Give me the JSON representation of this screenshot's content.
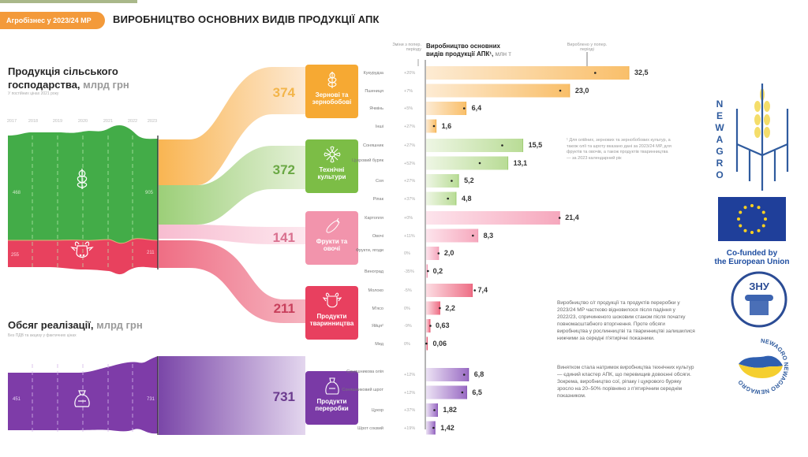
{
  "header": {
    "badge": "Агробізнес у 2023/24 МР",
    "title": "ВИРОБНИЦТВО ОСНОВНИХ ВИДІВ ПРОДУКЦІЇ АПК"
  },
  "left": {
    "production_title_1": "Продукція сільського",
    "production_title_2": "господарства,",
    "production_unit": "млрд грн",
    "production_sub": "У постійних цінах 2021 року",
    "years": [
      "2017",
      "2018",
      "2019",
      "2020",
      "2021",
      "2022",
      "2023"
    ],
    "crop_start": "468",
    "crop_end": "905",
    "livestock_start": "255",
    "livestock_end": "211",
    "sales_title": "Обсяг реалізації,",
    "sales_unit": "млрд грн",
    "sales_sub": "Без ПДВ та акцизу у фактичних цінах",
    "sales_start": "451",
    "sales_end": "731"
  },
  "categories": [
    {
      "num": "374",
      "label_1": "Зернові та",
      "label_2": "зернобобові",
      "icon": "wheat-icon",
      "color": "#f6a933"
    },
    {
      "num": "372",
      "label_1": "Технічні",
      "label_2": "культури",
      "icon": "flower-icon",
      "color": "#7cbd46"
    },
    {
      "num": "141",
      "label_1": "Фрукти та",
      "label_2": "овочі",
      "icon": "eggplant-icon",
      "color": "#f294ac"
    },
    {
      "num": "211",
      "label_1": "Продукти",
      "label_2": "тваринництва",
      "icon": "cow-icon",
      "color": "#e8405f"
    },
    {
      "num": "731",
      "label_1": "Продукти",
      "label_2": "переробки",
      "icon": "sack-icon",
      "color": "#7a3aa6"
    }
  ],
  "chart_head": {
    "title_1": "Виробництво основних",
    "title_2": "видів продукції АПК¹,",
    "unit": "млн т",
    "change_head": "Зміни з попер. періоду",
    "prev_head": "Вироблено у попер. періоді"
  },
  "note": "¹ Для олійних, зернових та зернобобових культур, а також олії та шроту вказано дані за 2023/24 МР, для фруктів та овочів, а також продуктів тваринництва — за 2023 календарний рік",
  "paragraph_1": "Виробництво с/г продукції та продуктів переробки у 2023/24 МР частково відновилося після падіння у 2022/23, спричиненого шоковим станом після початку повномасштабного вторгнення. Проте обсяги виробництва у рослинництві та тваринництві залишилися нижчими за середні п'ятирічні показники.",
  "paragraph_2": "Винятком стала натримок виробництва технічних культур — єдиний кластер АПК, що перевищив довоєнні обсяги. Зокрема, виробництво сої, ріпаку і цукрового буряку зросло на 20–50% порівняно з п'ятирічним середнім показником.",
  "logos": {
    "newagro_letters": [
      "N",
      "E",
      "W",
      "A",
      "G",
      "R",
      "O"
    ],
    "eu_caption_1": "Co-funded by",
    "eu_caption_2": "the European Union",
    "znu": "ЗНУ",
    "newagro_ring": "NEWAGRO NEWAGRO NEWAGRO"
  },
  "chart_data": {
    "type": "bar",
    "title": "Виробництво основних видів продукції АПК, млн т",
    "xlabel": "",
    "ylabel": "млн т",
    "groups": [
      {
        "name": "Зернові та зернобобові",
        "color": "#f6a933",
        "items": [
          {
            "label": "Кукурудза",
            "change": "+20%",
            "value": 32.5,
            "value_label": "32,5",
            "prev": 27.1
          },
          {
            "label": "Пшениця",
            "change": "+7%",
            "value": 23.0,
            "value_label": "23,0",
            "prev": 21.5
          },
          {
            "label": "Ячмінь",
            "change": "+5%",
            "value": 6.4,
            "value_label": "6,4",
            "prev": 6.1
          },
          {
            "label": "Інші",
            "change": "+27%",
            "value": 1.6,
            "value_label": "1,6",
            "prev": 1.26
          }
        ]
      },
      {
        "name": "Технічні культури",
        "color": "#7cbd46",
        "items": [
          {
            "label": "Соняшник",
            "change": "+27%",
            "value": 15.5,
            "value_label": "15,5",
            "prev": 12.2
          },
          {
            "label": "Цукровий буряк",
            "change": "+52%",
            "value": 13.1,
            "value_label": "13,1",
            "prev": 8.6
          },
          {
            "label": "Соя",
            "change": "+27%",
            "value": 5.2,
            "value_label": "5,2",
            "prev": 4.1
          },
          {
            "label": "Ріпак",
            "change": "+37%",
            "value": 4.8,
            "value_label": "4,8",
            "prev": 3.5
          }
        ]
      },
      {
        "name": "Фрукти та овочі",
        "color": "#f294ac",
        "items": [
          {
            "label": "Картопля",
            "change": "+0%",
            "value": 21.4,
            "value_label": "21,4",
            "prev": 21.4
          },
          {
            "label": "Овочі",
            "change": "+11%",
            "value": 8.3,
            "value_label": "8,3",
            "prev": 7.5
          },
          {
            "label": "Фрукти, ягоди",
            "change": "0%",
            "value": 2.0,
            "value_label": "2,0",
            "prev": 2.0
          },
          {
            "label": "Виноград",
            "change": "-35%",
            "value": 0.2,
            "value_label": "0,2",
            "prev": 0.3
          }
        ]
      },
      {
        "name": "Продукти тваринництва",
        "color": "#e8405f",
        "items": [
          {
            "label": "Молоко",
            "change": "-5%",
            "value": 7.4,
            "value_label": "7,4",
            "prev": 7.8
          },
          {
            "label": "М'ясо",
            "change": "0%",
            "value": 2.2,
            "value_label": "2,2",
            "prev": 2.2
          },
          {
            "label": "Яйця²",
            "change": "-9%",
            "value": 0.63,
            "value_label": "0,63",
            "prev": 0.69
          },
          {
            "label": "Мед",
            "change": "0%",
            "value": 0.06,
            "value_label": "0,06",
            "prev": 0.06
          }
        ]
      },
      {
        "name": "Продукти переробки",
        "color": "#7a3aa6",
        "items": [
          {
            "label": "Соняшникова олія",
            "change": "+12%",
            "value": 6.8,
            "value_label": "6,8",
            "prev": 6.1
          },
          {
            "label": "Соняшниковий шрот",
            "change": "+12%",
            "value": 6.5,
            "value_label": "6,5",
            "prev": 5.8
          },
          {
            "label": "Цукор",
            "change": "+37%",
            "value": 1.82,
            "value_label": "1,82",
            "prev": 1.33
          },
          {
            "label": "Шрот соєвий",
            "change": "+19%",
            "value": 1.42,
            "value_label": "1,42",
            "prev": 1.19
          }
        ]
      }
    ],
    "flow": {
      "production_crop": {
        "2017": 468,
        "2023": 905
      },
      "production_livestock": {
        "2017": 255,
        "2023": 211
      },
      "sales": {
        "2017": 451,
        "2023": 731
      },
      "breakdown": {
        "Зернові та зернобобові": 374,
        "Технічні культури": 372,
        "Фрукти та овочі": 141,
        "Продукти тваринництва": 211,
        "Продукти переробки": 731
      }
    }
  }
}
